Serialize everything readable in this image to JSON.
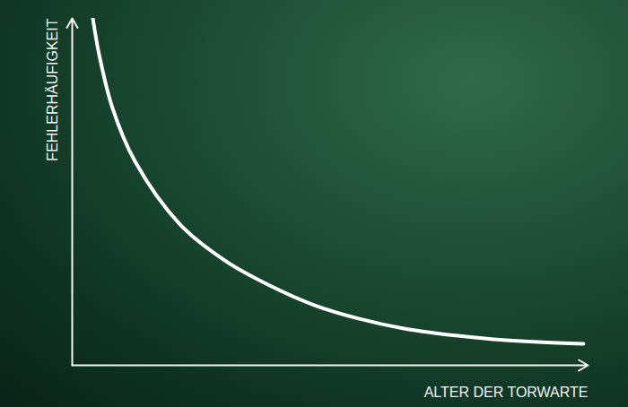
{
  "chart_data": {
    "type": "line",
    "x_label": "ALTER DER TORWARTE",
    "y_label": "FEHLERHÄUFIGKEIT",
    "x": [
      4,
      5.2,
      7.8,
      12.2,
      20.9,
      29.6,
      38.3,
      47,
      55.7,
      64.3,
      73,
      81.7,
      90.4,
      99.1
    ],
    "values": [
      100,
      89.7,
      74.2,
      58.7,
      40.6,
      30.2,
      23.0,
      17.3,
      13.4,
      10.6,
      8.8,
      7.5,
      6.7,
      6.2
    ],
    "color": "#ffffff",
    "xlim": [
      0,
      100
    ],
    "ylim": [
      0,
      100
    ],
    "xticks": [],
    "yticks": [],
    "grid": false,
    "tick_labels": false
  }
}
